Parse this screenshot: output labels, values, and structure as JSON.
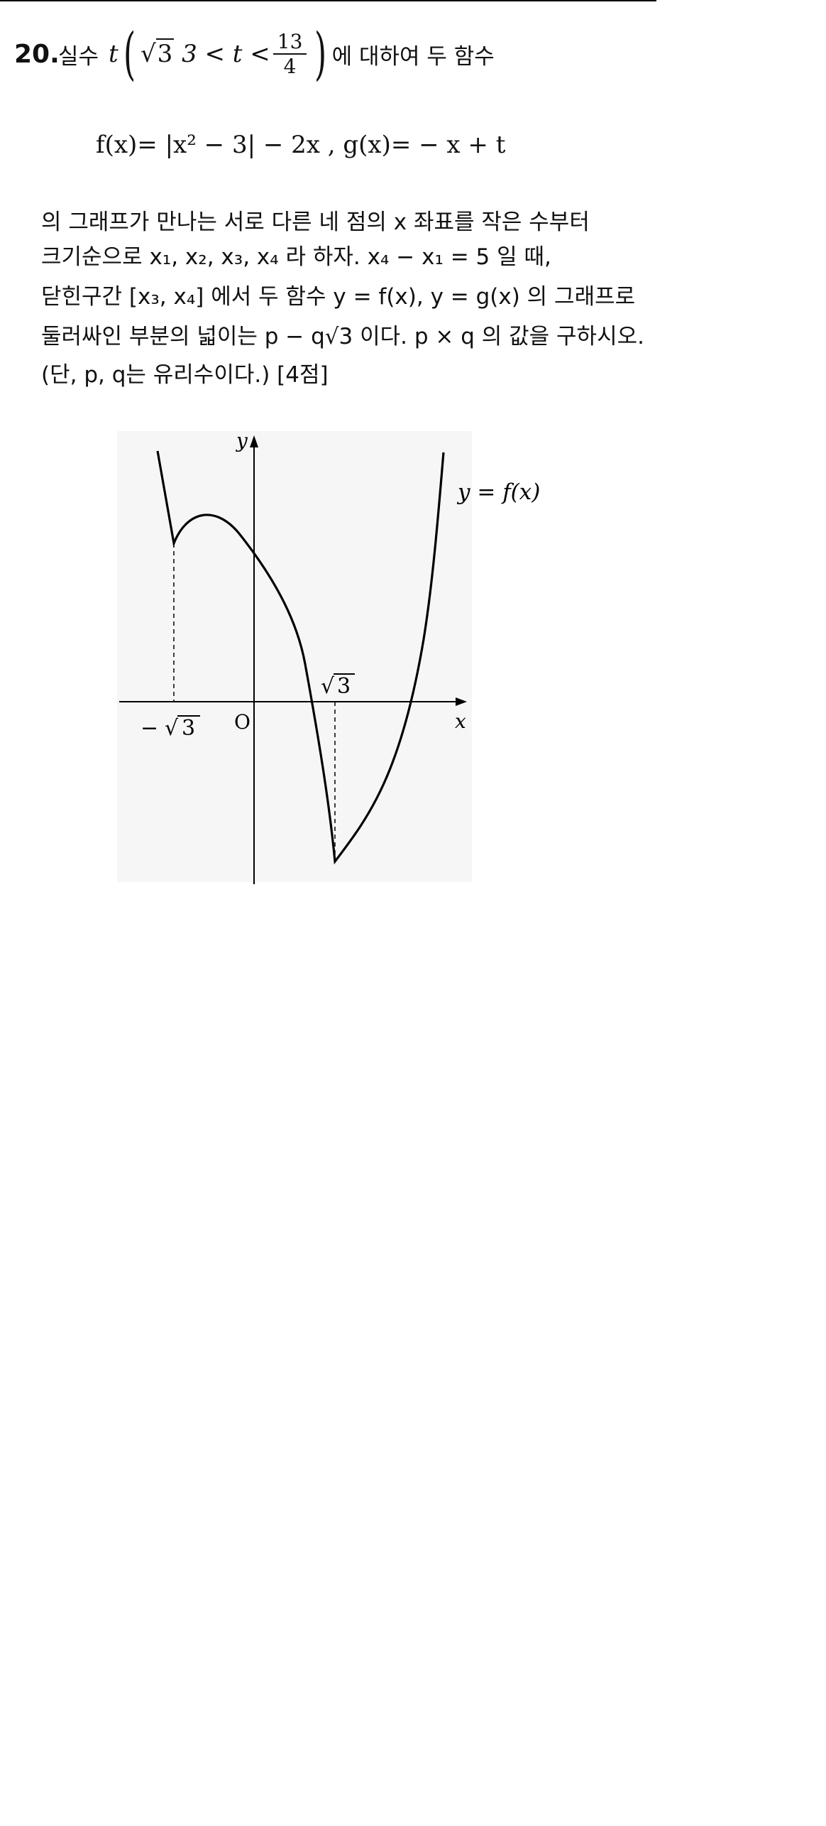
{
  "problem": {
    "number": "20.",
    "intro_text": "실수",
    "condition_var": "t",
    "condition_lhs": "3 < t <",
    "frac_num": "13",
    "frac_den": "4",
    "intro_suffix": "에 대하여 두 함수",
    "definition": "f(x)= |x² − 3| − 2x ,  g(x)= − x + t",
    "line1": "의 그래프가 만나는 서로 다른 네 점의 x 좌표를 작은 수부터",
    "line2": "크기순으로 x₁, x₂, x₃, x₄ 라 하자. x₄ − x₁ = 5 일 때,",
    "line3": "닫힌구간 [x₃, x₄] 에서 두 함수 y = f(x), y = g(x) 의 그래프로",
    "line4": "둘러싸인 부분의 넓이는 p − q√3 이다. p × q 의 값을 구하시오.",
    "line5": "(단, p, q는 유리수이다.) [4점]"
  },
  "graph": {
    "y_axis_label": "y",
    "x_axis_label": "x",
    "origin_label": "O",
    "curve_label": "y = f(x)",
    "neg_root_label": "−",
    "root_label": "3",
    "curve_color": "#000000"
  }
}
